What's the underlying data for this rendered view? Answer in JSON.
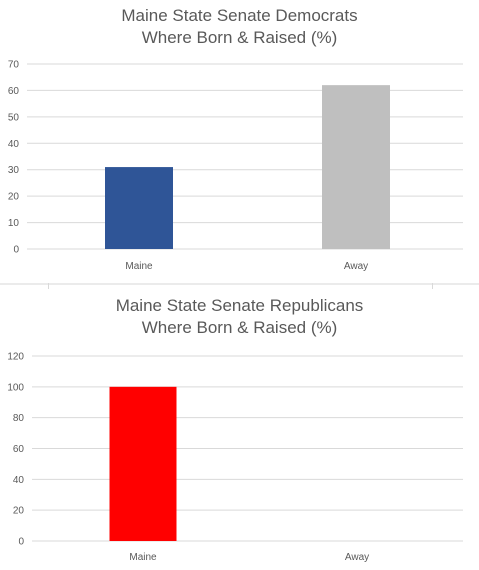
{
  "chart_data": [
    {
      "type": "bar",
      "title": [
        "Maine State Senate Democrats",
        "Where Born & Raised (%)"
      ],
      "categories": [
        "Maine",
        "Away"
      ],
      "values": [
        31,
        62
      ],
      "colors": [
        "#2f5597",
        "#bfbfbf"
      ],
      "ylim": [
        0,
        70
      ],
      "yticks": [
        0,
        10,
        20,
        30,
        40,
        50,
        60,
        70
      ],
      "grid": true,
      "legend": "none"
    },
    {
      "type": "bar",
      "title": [
        "Maine State Senate Republicans",
        "Where Born & Raised (%)"
      ],
      "categories": [
        "Maine",
        "Away"
      ],
      "values": [
        100,
        0
      ],
      "colors": [
        "#ff0000",
        "#ff0000"
      ],
      "ylim": [
        0,
        120
      ],
      "yticks": [
        0,
        20,
        40,
        60,
        80,
        100,
        120
      ],
      "grid": true,
      "legend": "none"
    }
  ]
}
